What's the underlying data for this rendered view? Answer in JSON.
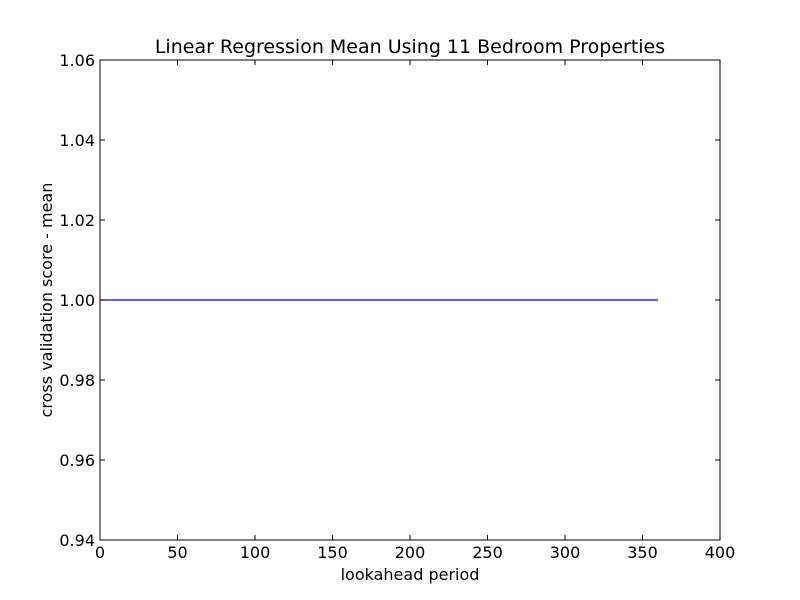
{
  "chart_data": {
    "type": "line",
    "title": "Linear Regression Mean Using 11 Bedroom Properties",
    "xlabel": "lookahead period",
    "ylabel": "cross validation score - mean",
    "xlim": [
      0,
      400
    ],
    "ylim": [
      0.94,
      1.06
    ],
    "x_ticks": [
      0,
      50,
      100,
      150,
      200,
      250,
      300,
      350,
      400
    ],
    "x_tick_labels": [
      "0",
      "50",
      "100",
      "150",
      "200",
      "250",
      "300",
      "350",
      "400"
    ],
    "y_ticks": [
      0.94,
      0.96,
      0.98,
      1.0,
      1.02,
      1.04,
      1.06
    ],
    "y_tick_labels": [
      "0.94",
      "0.96",
      "0.98",
      "1.00",
      "1.02",
      "1.04",
      "1.06"
    ],
    "grid": false,
    "series": [
      {
        "color": "#0000ff",
        "x": [
          0,
          360
        ],
        "y": [
          1.0,
          1.0
        ]
      }
    ]
  }
}
